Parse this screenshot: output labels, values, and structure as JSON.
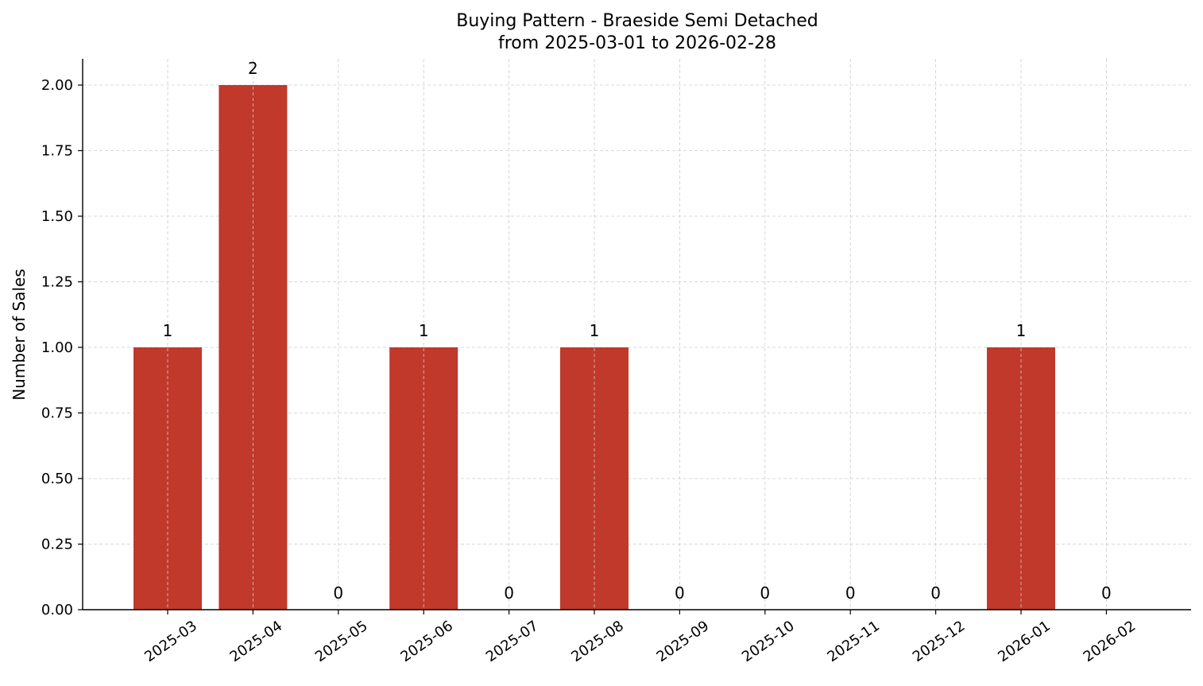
{
  "chart_data": {
    "type": "bar",
    "title": "Buying Pattern - Braeside Semi Detached",
    "subtitle": "from 2025-03-01 to 2026-02-28",
    "xlabel": "",
    "ylabel": "Number of Sales",
    "categories": [
      "2025-03",
      "2025-04",
      "2025-05",
      "2025-06",
      "2025-07",
      "2025-08",
      "2025-09",
      "2025-10",
      "2025-11",
      "2025-12",
      "2026-01",
      "2026-02"
    ],
    "values": [
      1,
      2,
      0,
      1,
      0,
      1,
      0,
      0,
      0,
      0,
      1,
      0
    ],
    "data_labels": [
      "1",
      "2",
      "0",
      "1",
      "0",
      "1",
      "0",
      "0",
      "0",
      "0",
      "1",
      "0"
    ],
    "ylim": [
      0,
      2.1
    ],
    "yticks": [
      0,
      0.25,
      0.5,
      0.75,
      1.0,
      1.25,
      1.5,
      1.75,
      2.0
    ],
    "ytick_labels": [
      "0.00",
      "0.25",
      "0.50",
      "0.75",
      "1.00",
      "1.25",
      "1.50",
      "1.75",
      "2.00"
    ],
    "grid": true,
    "bar_color": "#c0392b",
    "grid_color": "#cccccc"
  }
}
